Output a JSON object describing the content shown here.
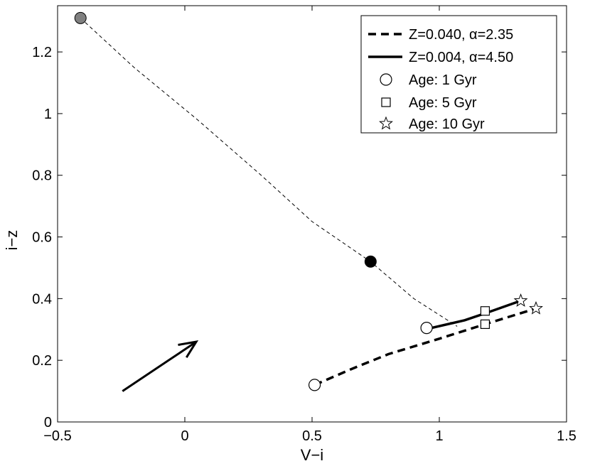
{
  "chart_data": {
    "type": "line",
    "xlabel": "V−i",
    "ylabel": "i−z",
    "xlim": [
      -0.5,
      1.5
    ],
    "ylim": [
      0,
      1.35
    ],
    "xticks": [
      -0.5,
      0,
      0.5,
      1,
      1.5
    ],
    "xtick_labels": [
      "−0.5",
      "0",
      "0.5",
      "1",
      "1.5"
    ],
    "yticks": [
      0,
      0.2,
      0.4,
      0.6,
      0.8,
      1,
      1.2
    ],
    "ytick_labels": [
      "0",
      "0.2",
      "0.4",
      "0.6",
      "0.8",
      "1",
      "1.2"
    ],
    "grid": false,
    "legend_position": "top-right",
    "series": [
      {
        "name": "Z=0.040, α=2.35",
        "style": "dashed",
        "x": [
          0.51,
          0.65,
          0.8,
          1.0,
          1.18,
          1.38
        ],
        "y": [
          0.12,
          0.17,
          0.22,
          0.27,
          0.317,
          0.368
        ]
      },
      {
        "name": "Z=0.004, α=4.50",
        "style": "solid",
        "x": [
          0.97,
          1.1,
          1.19,
          1.32
        ],
        "y": [
          0.305,
          0.33,
          0.355,
          0.393
        ]
      },
      {
        "style": "thin-dashed",
        "x": [
          -0.41,
          -0.2,
          0.05,
          0.3,
          0.5,
          0.73,
          0.9,
          1.07
        ],
        "y": [
          1.31,
          1.15,
          0.98,
          0.8,
          0.65,
          0.52,
          0.4,
          0.31
        ]
      }
    ],
    "markers": [
      {
        "label": "Age: 1 Gyr",
        "symbol": "circle",
        "points": [
          [
            0.51,
            0.12
          ],
          [
            0.95,
            0.305
          ]
        ]
      },
      {
        "label": "Age: 5 Gyr",
        "symbol": "square",
        "points": [
          [
            1.18,
            0.317
          ],
          [
            1.18,
            0.36
          ]
        ]
      },
      {
        "label": "Age: 10 Gyr",
        "symbol": "star",
        "points": [
          [
            1.32,
            0.393
          ],
          [
            1.38,
            0.368
          ]
        ]
      }
    ],
    "filled_points": [
      {
        "x": -0.41,
        "y": 1.31,
        "color": "#808080"
      },
      {
        "x": 0.73,
        "y": 0.52,
        "color": "#000000"
      }
    ],
    "arrow": {
      "from": [
        -0.245,
        0.1
      ],
      "to": [
        0.045,
        0.26
      ]
    }
  }
}
